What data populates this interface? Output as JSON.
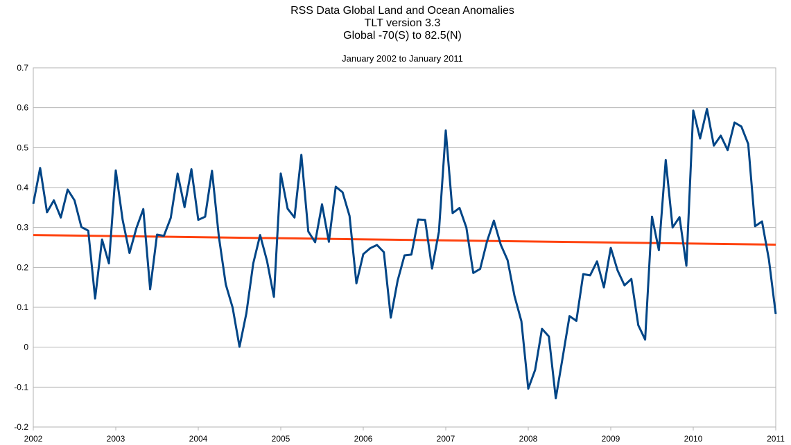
{
  "chart_data": {
    "type": "line",
    "title_lines": [
      "RSS Data Global Land and Ocean Anomalies",
      "TLT version 3.3",
      "Global -70(S) to 82.5(N)"
    ],
    "subtitle": "January 2002 to January 2011",
    "xlabel": "",
    "ylabel": "",
    "x_start": 2002,
    "x_step": 0.0833333,
    "xlim": [
      2002,
      2011
    ],
    "ylim": [
      -0.2,
      0.7
    ],
    "x_ticks": [
      "2002",
      "2003",
      "2004",
      "2005",
      "2006",
      "2007",
      "2008",
      "2009",
      "2010",
      "2011"
    ],
    "y_ticks": [
      "0.7",
      "0.6",
      "0.5",
      "0.4",
      "0.3",
      "0.2",
      "0.1",
      "0",
      "-0.1",
      "-0.2"
    ],
    "grid": true,
    "legend": "none",
    "series": [
      {
        "color": "#004586",
        "values": [
          0.359,
          0.449,
          0.338,
          0.368,
          0.325,
          0.395,
          0.368,
          0.301,
          0.292,
          0.122,
          0.27,
          0.21,
          0.443,
          0.319,
          0.236,
          0.298,
          0.346,
          0.145,
          0.282,
          0.279,
          0.324,
          0.435,
          0.351,
          0.446,
          0.319,
          0.327,
          0.442,
          0.277,
          0.157,
          0.099,
          0.001,
          0.085,
          0.21,
          0.281,
          0.216,
          0.126,
          0.435,
          0.347,
          0.325,
          0.482,
          0.29,
          0.263,
          0.358,
          0.264,
          0.402,
          0.388,
          0.329,
          0.16,
          0.233,
          0.248,
          0.256,
          0.238,
          0.074,
          0.167,
          0.23,
          0.232,
          0.32,
          0.319,
          0.197,
          0.289,
          0.543,
          0.336,
          0.349,
          0.3,
          0.186,
          0.196,
          0.265,
          0.317,
          0.257,
          0.218,
          0.128,
          0.065,
          -0.104,
          -0.057,
          0.046,
          0.027,
          -0.128,
          -0.026,
          0.078,
          0.066,
          0.183,
          0.18,
          0.215,
          0.15,
          0.249,
          0.192,
          0.155,
          0.171,
          0.055,
          0.019,
          0.327,
          0.243,
          0.469,
          0.3,
          0.326,
          0.204,
          0.593,
          0.523,
          0.597,
          0.505,
          0.53,
          0.494,
          0.563,
          0.553,
          0.509,
          0.303,
          0.315,
          0.22,
          0.083
        ]
      },
      {
        "color": "#ff420e",
        "trend_start": 0.281,
        "trend_end": 0.257
      }
    ]
  }
}
